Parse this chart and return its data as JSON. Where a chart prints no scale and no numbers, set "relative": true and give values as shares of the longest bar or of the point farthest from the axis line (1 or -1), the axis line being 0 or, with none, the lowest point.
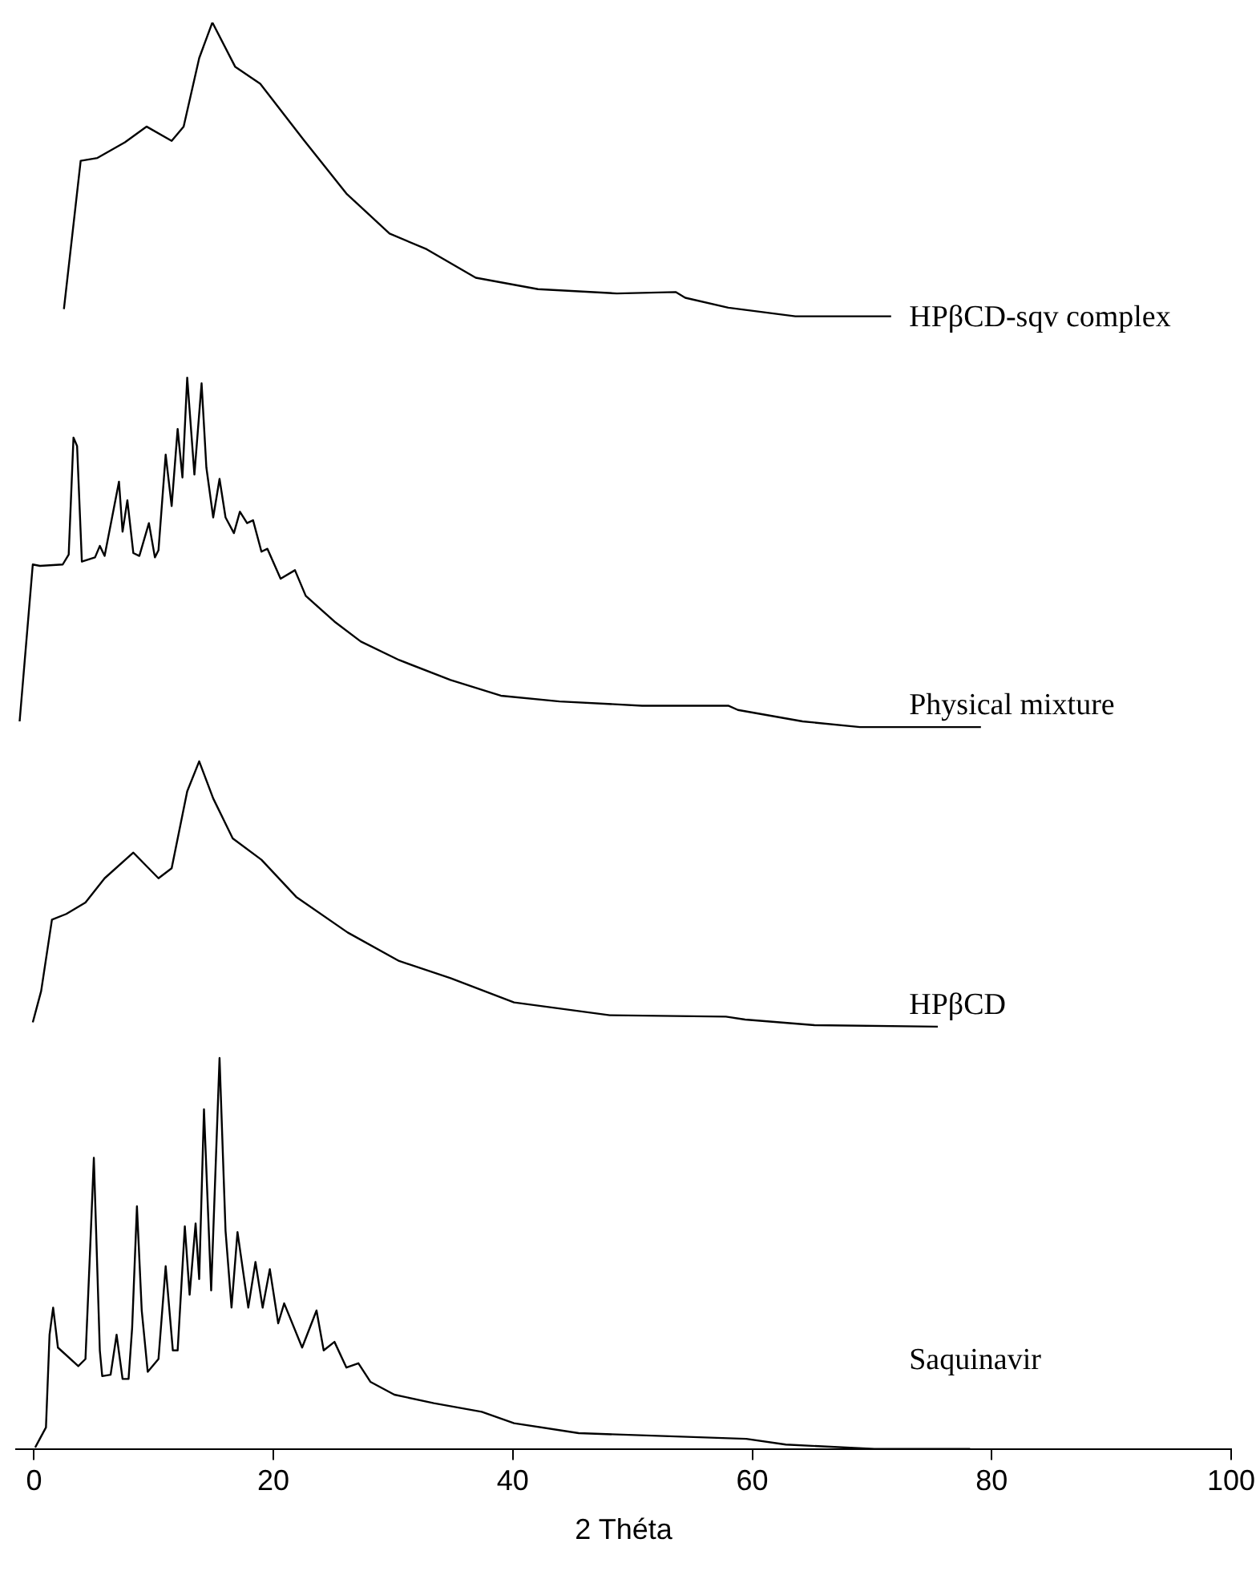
{
  "chart_data": {
    "type": "line",
    "xlabel": "2 Théta",
    "xlim": [
      -1.5,
      100
    ],
    "xticks": [
      0,
      20,
      40,
      60,
      80,
      100
    ],
    "relative": true,
    "marker": "none",
    "series": [
      {
        "name": "HPβCD-sqv complex",
        "color": "#000000",
        "x": [
          2.5,
          3.9,
          5.3,
          7.6,
          9.4,
          11.5,
          12.5,
          13.8,
          14.9,
          16.8,
          18.9,
          22.5,
          26.1,
          29.7,
          32.8,
          36.9,
          42.1,
          48.7,
          53.6,
          54.4,
          58.0,
          63.6,
          71.6
        ],
        "values": [
          0.799,
          0.903,
          0.905,
          0.916,
          0.927,
          0.917,
          0.927,
          0.975,
          1.0,
          0.969,
          0.957,
          0.918,
          0.88,
          0.852,
          0.841,
          0.821,
          0.813,
          0.81,
          0.811,
          0.807,
          0.8,
          0.794,
          0.794
        ]
      },
      {
        "name": "Physical mixture",
        "color": "#000000",
        "x": [
          -1.2,
          -0.1,
          0.5,
          2.4,
          2.9,
          3.3,
          3.6,
          4.0,
          5.1,
          5.5,
          5.9,
          7.1,
          7.4,
          7.8,
          8.3,
          8.8,
          9.6,
          10.1,
          10.4,
          11.0,
          11.5,
          12.0,
          12.4,
          12.8,
          13.4,
          14.0,
          14.4,
          14.97,
          15.5,
          16.0,
          16.7,
          17.2,
          17.8,
          18.3,
          19.0,
          19.5,
          20.6,
          21.8,
          22.7,
          25.1,
          27.3,
          30.5,
          34.8,
          39.0,
          43.9,
          50.8,
          58.0,
          58.8,
          64.2,
          69.0,
          79.1
        ],
        "values": [
          0.51,
          0.62,
          0.619,
          0.62,
          0.627,
          0.709,
          0.703,
          0.622,
          0.625,
          0.633,
          0.626,
          0.678,
          0.643,
          0.665,
          0.628,
          0.626,
          0.649,
          0.625,
          0.63,
          0.697,
          0.661,
          0.715,
          0.681,
          0.751,
          0.683,
          0.747,
          0.688,
          0.653,
          0.68,
          0.653,
          0.642,
          0.657,
          0.649,
          0.651,
          0.629,
          0.631,
          0.61,
          0.616,
          0.598,
          0.58,
          0.566,
          0.553,
          0.539,
          0.528,
          0.524,
          0.521,
          0.521,
          0.518,
          0.51,
          0.506,
          0.506
        ]
      },
      {
        "name": "HPβCD",
        "color": "#000000",
        "x": [
          -0.1,
          0.6,
          1.5,
          2.7,
          4.3,
          5.9,
          8.3,
          10.4,
          11.5,
          12.8,
          13.8,
          14.97,
          16.6,
          19.0,
          21.9,
          26.2,
          30.5,
          34.8,
          40.1,
          48.1,
          57.8,
          59.4,
          65.2,
          75.5
        ],
        "values": [
          0.299,
          0.321,
          0.371,
          0.375,
          0.383,
          0.4,
          0.418,
          0.4,
          0.407,
          0.461,
          0.482,
          0.456,
          0.428,
          0.413,
          0.387,
          0.362,
          0.342,
          0.33,
          0.313,
          0.304,
          0.303,
          0.301,
          0.297,
          0.296
        ]
      },
      {
        "name": "Saquinavir",
        "color": "#000000",
        "x": [
          0.1,
          1.0,
          1.3,
          1.6,
          2.0,
          3.7,
          4.3,
          4.7,
          5.0,
          5.5,
          5.7,
          6.4,
          6.9,
          7.4,
          7.9,
          8.2,
          8.6,
          9.0,
          9.5,
          10.4,
          11.0,
          11.6,
          12.0,
          12.6,
          13.0,
          13.5,
          13.8,
          14.2,
          14.8,
          15.5,
          16.0,
          16.5,
          17.0,
          17.9,
          18.5,
          19.1,
          19.7,
          20.4,
          20.9,
          22.4,
          23.6,
          24.2,
          25.1,
          26.1,
          27.1,
          28.1,
          30.1,
          33.4,
          37.4,
          40.1,
          45.5,
          59.5,
          62.8,
          70.2,
          78.2
        ],
        "values": [
          0.001,
          0.015,
          0.08,
          0.099,
          0.071,
          0.058,
          0.063,
          0.142,
          0.204,
          0.069,
          0.051,
          0.052,
          0.08,
          0.049,
          0.049,
          0.085,
          0.17,
          0.097,
          0.054,
          0.063,
          0.128,
          0.069,
          0.069,
          0.156,
          0.108,
          0.158,
          0.119,
          0.238,
          0.111,
          0.274,
          0.153,
          0.099,
          0.152,
          0.099,
          0.131,
          0.099,
          0.126,
          0.088,
          0.102,
          0.071,
          0.097,
          0.069,
          0.075,
          0.057,
          0.06,
          0.047,
          0.038,
          0.032,
          0.026,
          0.018,
          0.011,
          0.007,
          0.003,
          0,
          0
        ]
      }
    ]
  }
}
